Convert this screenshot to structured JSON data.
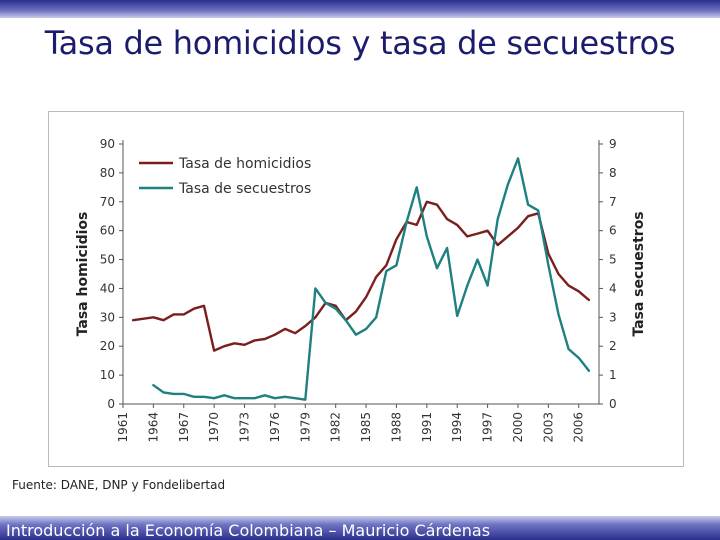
{
  "slide": {
    "title": "Tasa de homicidios y tasa de secuestros",
    "source": "Fuente: DANE, DNP y Fondelibertad",
    "footer": "Introducción a la Economía Colombiana – Mauricio Cárdenas"
  },
  "colors": {
    "homicidios": "#7b1e1e",
    "secuestros": "#1f8080",
    "bar": "#2a2f8c"
  },
  "chart_data": {
    "type": "line",
    "x_ticks": [
      "1961",
      "1964",
      "1967",
      "1970",
      "1973",
      "1976",
      "1979",
      "1982",
      "1985",
      "1988",
      "1991",
      "1994",
      "1997",
      "2000",
      "2003",
      "2006"
    ],
    "xlim": [
      1961,
      2008
    ],
    "ylabel_left": "Tasa homicidios",
    "ylabel_right": "Tasa secuestros",
    "ylim_left": [
      0,
      90
    ],
    "ylim_right": [
      0,
      9
    ],
    "yticks_left": [
      "0",
      "10",
      "20",
      "30",
      "40",
      "50",
      "60",
      "70",
      "80",
      "90"
    ],
    "yticks_right": [
      "0",
      "1",
      "2",
      "3",
      "4",
      "5",
      "6",
      "7",
      "8",
      "9"
    ],
    "legend_position": "top-left",
    "grid": false,
    "series": [
      {
        "name": "Tasa de homicidios",
        "axis": "left",
        "x": [
          1962,
          1964,
          1965,
          1966,
          1967,
          1968,
          1969,
          1970,
          1971,
          1972,
          1973,
          1974,
          1975,
          1976,
          1977,
          1978,
          1979,
          1980,
          1981,
          1982,
          1983,
          1984,
          1985,
          1986,
          1987,
          1988,
          1989,
          1990,
          1991,
          1992,
          1993,
          1994,
          1995,
          1996,
          1997,
          1998,
          1999,
          2000,
          2001,
          2002,
          2003,
          2004,
          2005,
          2006,
          2007
        ],
        "values": [
          29,
          30,
          29,
          31,
          31,
          33,
          34,
          18.5,
          20,
          21,
          20.5,
          22,
          22.5,
          24,
          26,
          24.5,
          27,
          30,
          35,
          34,
          29,
          32,
          37,
          44,
          48,
          57,
          63,
          62,
          70,
          69,
          64,
          62,
          58,
          59,
          60,
          55,
          58,
          61,
          65,
          66,
          52,
          45,
          41,
          39,
          36
        ]
      },
      {
        "name": "Tasa de secuestros",
        "axis": "right",
        "x": [
          1964,
          1965,
          1966,
          1967,
          1968,
          1969,
          1970,
          1971,
          1972,
          1973,
          1974,
          1975,
          1976,
          1977,
          1978,
          1979,
          1980,
          1981,
          1982,
          1983,
          1984,
          1985,
          1986,
          1987,
          1988,
          1989,
          1990,
          1991,
          1992,
          1993,
          1994,
          1995,
          1996,
          1997,
          1998,
          1999,
          2000,
          2001,
          2002,
          2003,
          2004,
          2005,
          2006,
          2007
        ],
        "values": [
          0.65,
          0.4,
          0.35,
          0.35,
          0.25,
          0.25,
          0.2,
          0.3,
          0.2,
          0.2,
          0.2,
          0.3,
          0.2,
          0.25,
          0.2,
          0.15,
          4.0,
          3.5,
          3.3,
          2.9,
          2.4,
          2.6,
          3.0,
          4.6,
          4.8,
          6.3,
          7.5,
          5.8,
          4.7,
          5.4,
          3.05,
          4.1,
          5.0,
          4.1,
          6.4,
          7.6,
          8.5,
          6.9,
          6.7,
          4.8,
          3.1,
          1.9,
          1.6,
          1.15
        ]
      }
    ]
  }
}
